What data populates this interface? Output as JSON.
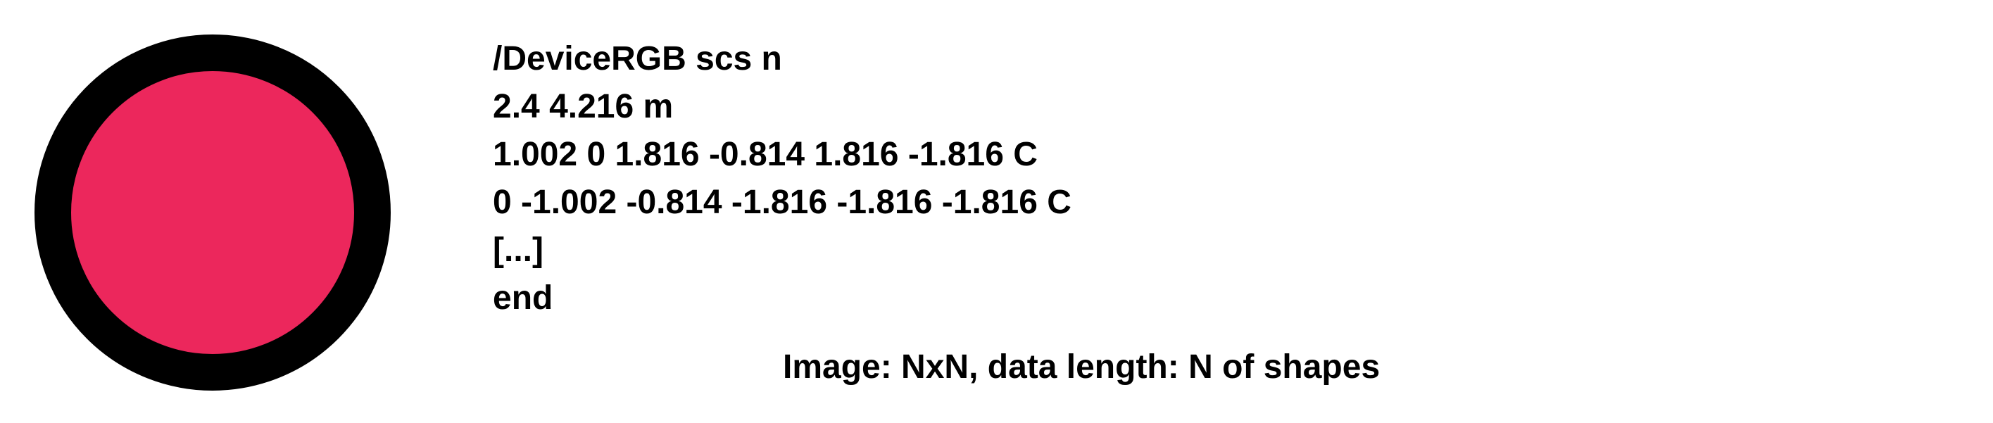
{
  "shape": {
    "type": "circle",
    "fill_color": "#EC275C",
    "stroke_color": "#000000"
  },
  "code_lines": [
    "/DeviceRGB scs n",
    "2.4 4.216 m",
    "1.002 0 1.816 -0.814 1.816 -1.816 C",
    "0 -1.002 -0.814 -1.816 -1.816 -1.816 C",
    "[...]",
    "end"
  ],
  "caption": "Image: NxN, data length: N of shapes"
}
